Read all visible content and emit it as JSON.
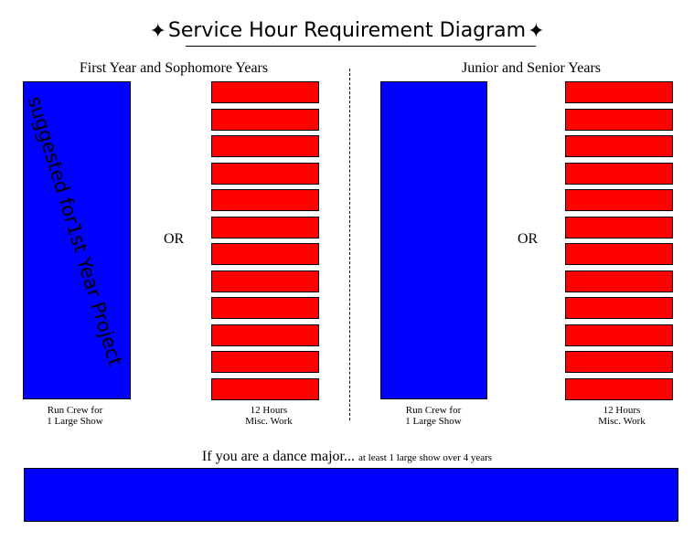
{
  "title": "Service Hour Requirement Diagram",
  "left": {
    "heading": "First Year and Sophomore Years",
    "blue_label": "suggested for1st Year Project",
    "or": "OR",
    "blue_caption": [
      "Run Crew for",
      "1 Large Show"
    ],
    "red_caption": [
      "12 Hours",
      "Misc. Work"
    ],
    "red_blocks": 12
  },
  "right": {
    "heading": "Junior and Senior Years",
    "or": "OR",
    "blue_caption": [
      "Run Crew for",
      "1 Large Show"
    ],
    "red_caption": [
      "12 Hours",
      "Misc. Work"
    ],
    "red_blocks": 12
  },
  "dance": {
    "main": "If you are a dance major...",
    "note": "at least 1 large show over  4 years"
  },
  "colors": {
    "blue": "#0000ff",
    "red": "#ff0000"
  },
  "icons": [
    "four-point-star-icon"
  ]
}
